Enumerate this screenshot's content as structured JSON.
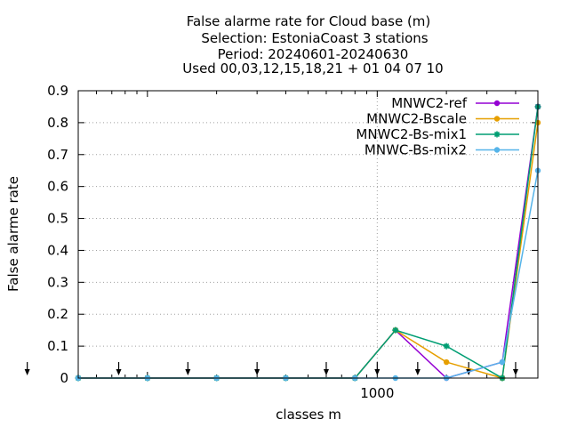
{
  "chart_data": {
    "type": "line",
    "title_lines": [
      "False alarme rate  for Cloud base (m)",
      "Selection: EstoniaCoast      3 stations",
      "Period: 20240601-20240630",
      "Used 00,03,12,15,18,21 + 01 04 07 10"
    ],
    "xlabel": "classes m",
    "ylabel": "False alarme rate",
    "x_scale": "log",
    "xlim": [
      50,
      5000
    ],
    "ylim": [
      0,
      0.9
    ],
    "y_ticks": [
      0,
      0.1,
      0.2,
      0.3,
      0.4,
      0.5,
      0.6,
      0.7,
      0.8,
      0.9
    ],
    "y_tick_labels": [
      "0",
      "0.1",
      "0.2",
      "0.3",
      "0.4",
      "0.5",
      "0.6",
      "0.7",
      "0.8",
      "0.9"
    ],
    "x_ticks": [
      1000
    ],
    "x_tick_labels": [
      "1000"
    ],
    "grid": true,
    "legend_position": "top-right",
    "x": [
      50,
      100,
      200,
      400,
      800,
      1200,
      2000,
      3500,
      5000
    ],
    "arrow_x": [
      30,
      75,
      150,
      300,
      600,
      1000,
      1500,
      2500,
      4000
    ],
    "series": [
      {
        "name": "MNWC2-ref",
        "color": "#9400d3",
        "marker": "circle",
        "values": [
          0,
          0,
          0,
          0,
          0,
          0.15,
          0,
          0.05,
          0.85
        ]
      },
      {
        "name": "MNWC2-Bscale",
        "color": "#e69f00",
        "marker": "circle",
        "values": [
          0,
          0,
          0,
          0,
          0,
          0.15,
          0.05,
          0,
          0.8
        ]
      },
      {
        "name": "MNWC2-Bs-mix1",
        "color": "#009e73",
        "marker": "star",
        "values": [
          0,
          0,
          0,
          0,
          0,
          0.15,
          0.1,
          0,
          0.85
        ]
      },
      {
        "name": "MNWC-Bs-mix2",
        "color": "#56b4e9",
        "marker": "circle",
        "values": [
          0,
          0,
          0,
          0,
          0,
          0,
          0,
          0.05,
          0.65
        ]
      }
    ]
  }
}
